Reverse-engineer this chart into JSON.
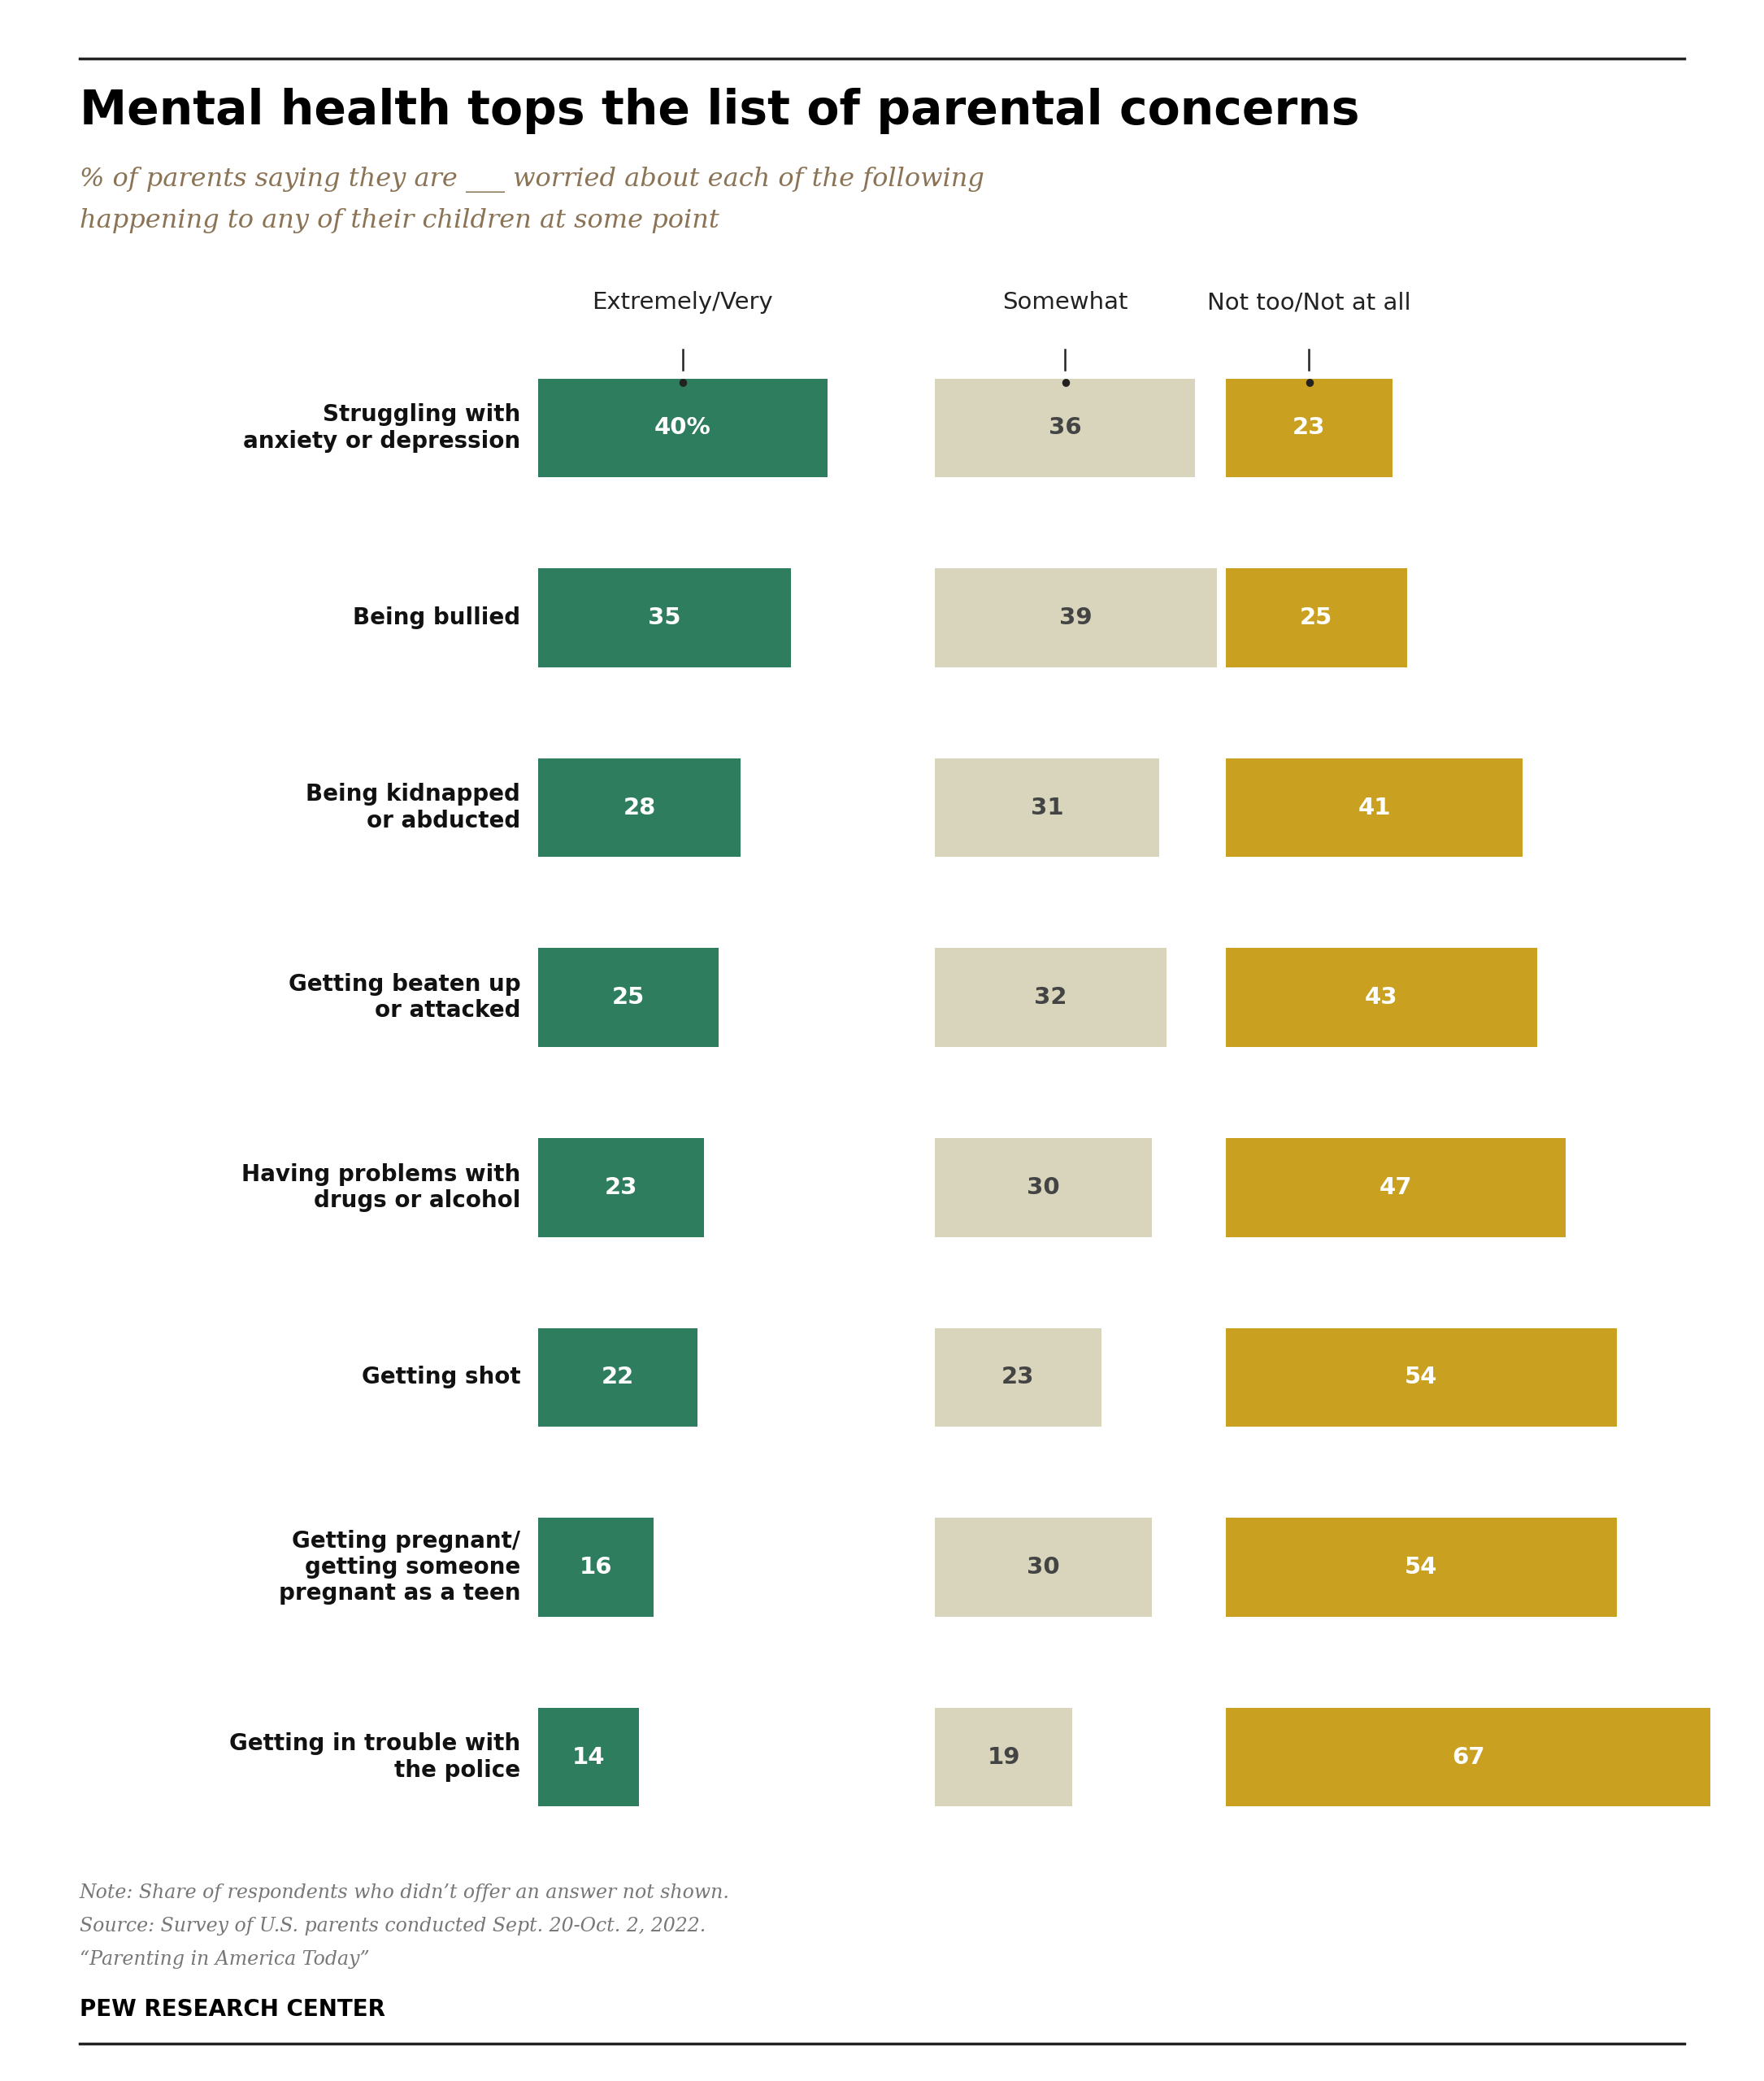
{
  "title": "Mental health tops the list of parental concerns",
  "subtitle_line1": "% of parents saying they are ___ worried about each of the following",
  "subtitle_line2": "happening to any of their children at some point",
  "categories": [
    "Struggling with\nanxiety or depression",
    "Being bullied",
    "Being kidnapped\nor abducted",
    "Getting beaten up\nor attacked",
    "Having problems with\ndrugs or alcohol",
    "Getting shot",
    "Getting pregnant/\ngetting someone\npregnant as a teen",
    "Getting in trouble with\nthe police"
  ],
  "col_labels": [
    "Extremely/Very",
    "Somewhat",
    "Not too/Not at all"
  ],
  "extremely_very": [
    40,
    35,
    28,
    25,
    23,
    22,
    16,
    14
  ],
  "somewhat": [
    36,
    39,
    31,
    32,
    30,
    23,
    30,
    19
  ],
  "not_too": [
    23,
    25,
    41,
    43,
    47,
    54,
    54,
    67
  ],
  "color_extremely": "#2e7d5e",
  "color_somewhat": "#d8d5bc",
  "color_not_too": "#c9a020",
  "color_title": "#000000",
  "color_subtitle": "#8b7355",
  "color_note": "#777777",
  "color_col_label": "#222222",
  "note_line1": "Note: Share of respondents who didn’t offer an answer not shown.",
  "note_line2": "Source: Survey of U.S. parents conducted Sept. 20-Oct. 2, 2022.",
  "note_line3": "“Parenting in America Today”",
  "footer": "PEW RESEARCH CENTER",
  "background_color": "#ffffff"
}
